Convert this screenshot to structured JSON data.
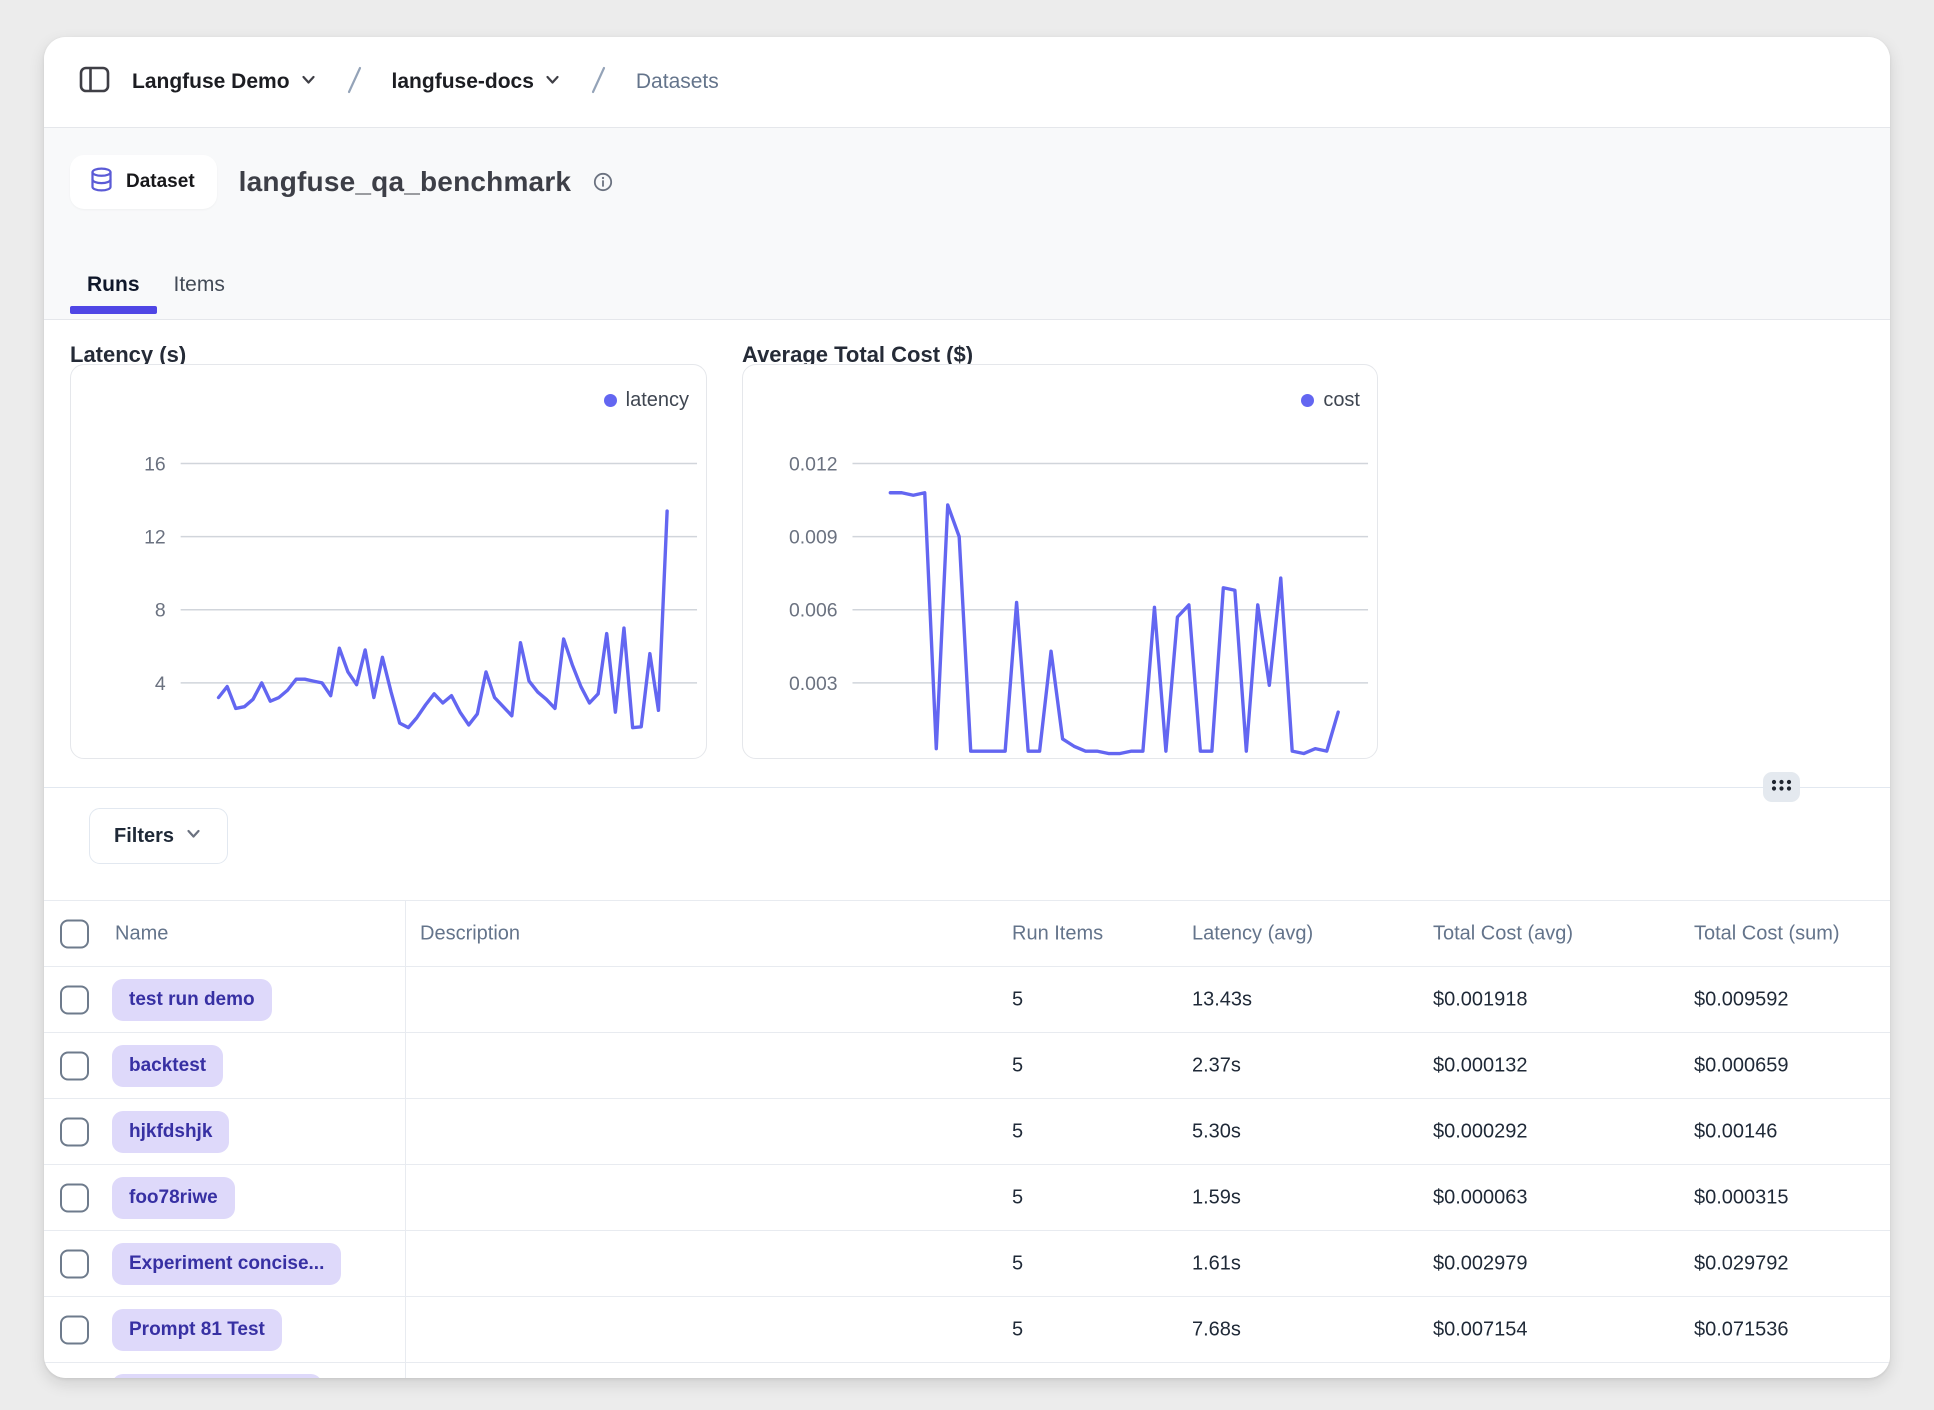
{
  "breadcrumb": {
    "org": "Langfuse Demo",
    "project": "langfuse-docs",
    "page": "Datasets"
  },
  "header": {
    "badge_label": "Dataset",
    "title": "langfuse_qa_benchmark",
    "tabs": [
      {
        "label": "Runs",
        "active": true
      },
      {
        "label": "Items",
        "active": false
      }
    ]
  },
  "chart_data": [
    {
      "type": "line",
      "title": "Latency (s)",
      "legend": "latency",
      "legend_position": "top-right",
      "grid": true,
      "ytick_labels": [
        "16",
        "12",
        "8",
        "4"
      ],
      "ytick_values": [
        16,
        12,
        8,
        4
      ],
      "ylim": [
        0,
        21.4
      ],
      "values": [
        3.2,
        3.8,
        2.6,
        2.7,
        3.1,
        4.0,
        3.0,
        3.2,
        3.6,
        4.2,
        4.2,
        4.1,
        4.0,
        3.3,
        5.9,
        4.6,
        3.9,
        5.8,
        3.2,
        5.4,
        3.5,
        1.8,
        1.55,
        2.1,
        2.8,
        3.4,
        2.9,
        3.3,
        2.4,
        1.7,
        2.3,
        4.6,
        3.2,
        2.7,
        2.2,
        6.2,
        4.1,
        3.5,
        3.1,
        2.6,
        6.4,
        5.0,
        3.8,
        2.9,
        3.4,
        6.7,
        2.4,
        7.0,
        1.55,
        1.6,
        5.6,
        2.5,
        13.4
      ]
    },
    {
      "type": "line",
      "title": "Average Total Cost ($)",
      "legend": "cost",
      "legend_position": "top-right",
      "grid": true,
      "ytick_labels": [
        "0.012",
        "0.009",
        "0.006",
        "0.003"
      ],
      "ytick_values": [
        0.012,
        0.009,
        0.006,
        0.003
      ],
      "ylim": [
        0,
        0.016
      ],
      "values": [
        0.0108,
        0.0108,
        0.0107,
        0.0108,
        0.0003,
        0.0103,
        0.009,
        0.0002,
        0.0002,
        0.0002,
        0.0002,
        0.0063,
        0.0002,
        0.0002,
        0.0043,
        0.0007,
        0.0004,
        0.0002,
        0.0002,
        0.0001,
        0.0001,
        0.0002,
        0.0002,
        0.0061,
        0.0002,
        0.0057,
        0.0062,
        0.0002,
        0.0002,
        0.0069,
        0.0068,
        0.0002,
        0.0062,
        0.0029,
        0.0073,
        0.0002,
        0.0001,
        0.0003,
        0.0002,
        0.0018
      ]
    }
  ],
  "filters": {
    "label": "Filters"
  },
  "table": {
    "columns": [
      "Name",
      "Description",
      "Run Items",
      "Latency (avg)",
      "Total Cost (avg)",
      "Total Cost (sum)"
    ],
    "rows": [
      {
        "name": "test run demo",
        "description": "",
        "run_items": "5",
        "latency_avg": "13.43s",
        "total_cost_avg": "$0.001918",
        "total_cost_sum": "$0.009592"
      },
      {
        "name": "backtest",
        "description": "",
        "run_items": "5",
        "latency_avg": "2.37s",
        "total_cost_avg": "$0.000132",
        "total_cost_sum": "$0.000659"
      },
      {
        "name": "hjkfdshjk",
        "description": "",
        "run_items": "5",
        "latency_avg": "5.30s",
        "total_cost_avg": "$0.000292",
        "total_cost_sum": "$0.00146"
      },
      {
        "name": "foo78riwe",
        "description": "",
        "run_items": "5",
        "latency_avg": "1.59s",
        "total_cost_avg": "$0.000063",
        "total_cost_sum": "$0.000315"
      },
      {
        "name": "Experiment concise...",
        "description": "",
        "run_items": "5",
        "latency_avg": "1.61s",
        "total_cost_avg": "$0.002979",
        "total_cost_sum": "$0.029792"
      },
      {
        "name": "Prompt 81 Test",
        "description": "",
        "run_items": "5",
        "latency_avg": "7.68s",
        "total_cost_avg": "$0.007154",
        "total_cost_sum": "$0.071536"
      }
    ]
  },
  "colors": {
    "accent": "#6366f1",
    "tab_underline": "#4f46e5",
    "pill_bg": "#ded9fa",
    "pill_text": "#3730a3",
    "grid_line": "#d1d5db",
    "header_band_bg": "#f8f9fa"
  }
}
